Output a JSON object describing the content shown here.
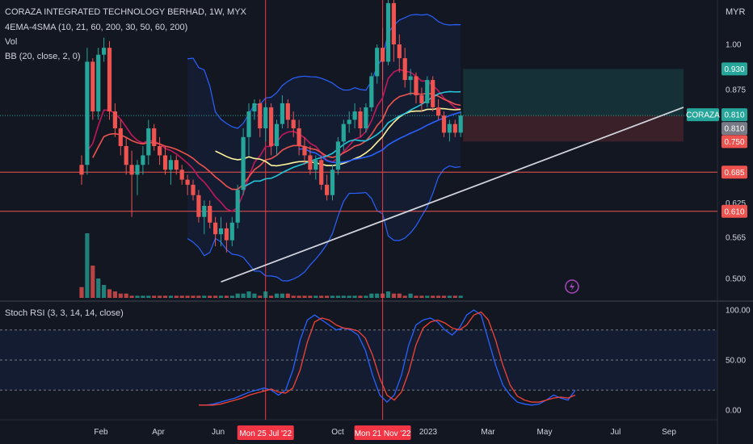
{
  "header": {
    "title": "CORAZA INTEGRATED TECHNOLOGY BERHAD, 1W, MYX",
    "indicator_ema": "4EMA-4SMA (10, 21, 60, 200, 30, 50, 60, 200)",
    "indicator_vol": "Vol",
    "indicator_bb": "BB (20, close, 2, 0)",
    "currency": "MYR",
    "stoch_title": "Stoch RSI (3, 3, 14, 14, close)"
  },
  "colors": {
    "up": "#26a69a",
    "down": "#ef5350",
    "bg": "#131722",
    "grid": "#2a2e39",
    "ema10": "#c2185b",
    "ema21": "#ef5350",
    "sma50": "#26c6da",
    "sma200": "#2962ff",
    "ema60": "#fff59d",
    "bb": "#2962ff",
    "trend": "#d1d4dc",
    "stoch_k": "#2962ff",
    "stoch_d": "#f44336"
  },
  "price_labels": [
    {
      "value": 0.93,
      "text": "0.930",
      "color": "#26a69a"
    },
    {
      "value": 0.81,
      "text": "0.810",
      "color": "#26a69a"
    },
    {
      "value": 0.81,
      "text": "0.810",
      "color": "#787b86"
    },
    {
      "value": 0.75,
      "text": "0.750",
      "color": "#ef5350"
    },
    {
      "value": 0.685,
      "text": "0.685",
      "color": "#ef5350"
    },
    {
      "value": 0.61,
      "text": "0.610",
      "color": "#ef5350"
    }
  ],
  "symbol_tag": "CORAZA",
  "symbol_tag_value": "0.810",
  "time_labels": [
    "Feb",
    "Apr",
    "Jun",
    "Oct",
    "2023",
    "Mar",
    "May",
    "Jul",
    "Sep"
  ],
  "cursor_labels": [
    "Mon 25 Jul '22",
    "Mon 21 Nov '22"
  ],
  "chart_data": [
    {
      "type": "candlestick",
      "title": "CORAZA INTEGRATED TECHNOLOGY BERHAD, 1W, MYX",
      "y_axis_unit": "MYR",
      "y_ticks": [
        0.5,
        0.565,
        0.625,
        0.875,
        1.0
      ],
      "y_tick_labels": [
        "0.500",
        "0.565",
        "0.625",
        "0.875",
        "1.00"
      ],
      "horizontal_levels": [
        0.685,
        0.61
      ],
      "x_ticks": [
        "Feb",
        "Apr",
        "Jun",
        "Oct",
        "2023",
        "Mar",
        "May",
        "Jul",
        "Sep"
      ],
      "candles": [
        [
          0.7,
          0.72,
          0.66,
          0.68
        ],
        [
          0.7,
          0.99,
          0.68,
          0.95
        ],
        [
          0.95,
          0.96,
          0.8,
          0.82
        ],
        [
          0.82,
          0.99,
          0.8,
          0.97
        ],
        [
          0.97,
          1.02,
          0.95,
          0.99
        ],
        [
          0.99,
          1.01,
          0.8,
          0.82
        ],
        [
          0.82,
          0.84,
          0.76,
          0.78
        ],
        [
          0.78,
          0.8,
          0.72,
          0.74
        ],
        [
          0.74,
          0.76,
          0.68,
          0.7
        ],
        [
          0.7,
          0.73,
          0.6,
          0.68
        ],
        [
          0.68,
          0.71,
          0.64,
          0.7
        ],
        [
          0.7,
          0.74,
          0.68,
          0.72
        ],
        [
          0.72,
          0.8,
          0.7,
          0.78
        ],
        [
          0.78,
          0.79,
          0.73,
          0.74
        ],
        [
          0.74,
          0.76,
          0.7,
          0.72
        ],
        [
          0.72,
          0.74,
          0.68,
          0.69
        ],
        [
          0.69,
          0.72,
          0.66,
          0.71
        ],
        [
          0.71,
          0.72,
          0.68,
          0.69
        ],
        [
          0.69,
          0.7,
          0.66,
          0.67
        ],
        [
          0.67,
          0.68,
          0.64,
          0.66
        ],
        [
          0.66,
          0.67,
          0.63,
          0.64
        ],
        [
          0.64,
          0.65,
          0.59,
          0.6
        ],
        [
          0.6,
          0.63,
          0.57,
          0.62
        ],
        [
          0.62,
          0.63,
          0.58,
          0.59
        ],
        [
          0.59,
          0.6,
          0.55,
          0.57
        ],
        [
          0.57,
          0.6,
          0.55,
          0.58
        ],
        [
          0.58,
          0.59,
          0.54,
          0.56
        ],
        [
          0.56,
          0.6,
          0.55,
          0.59
        ],
        [
          0.59,
          0.66,
          0.58,
          0.65
        ],
        [
          0.65,
          0.78,
          0.64,
          0.76
        ],
        [
          0.76,
          0.84,
          0.72,
          0.82
        ],
        [
          0.82,
          0.85,
          0.8,
          0.84
        ],
        [
          0.84,
          0.85,
          0.76,
          0.78
        ],
        [
          0.78,
          0.84,
          0.75,
          0.83
        ],
        [
          0.83,
          0.84,
          0.72,
          0.74
        ],
        [
          0.74,
          0.8,
          0.72,
          0.79
        ],
        [
          0.79,
          0.86,
          0.78,
          0.84
        ],
        [
          0.84,
          0.85,
          0.78,
          0.8
        ],
        [
          0.8,
          0.82,
          0.76,
          0.78
        ],
        [
          0.78,
          0.8,
          0.72,
          0.74
        ],
        [
          0.74,
          0.76,
          0.7,
          0.72
        ],
        [
          0.72,
          0.74,
          0.68,
          0.69
        ],
        [
          0.69,
          0.72,
          0.67,
          0.71
        ],
        [
          0.71,
          0.72,
          0.65,
          0.66
        ],
        [
          0.66,
          0.68,
          0.63,
          0.64
        ],
        [
          0.64,
          0.7,
          0.63,
          0.69
        ],
        [
          0.69,
          0.76,
          0.68,
          0.75
        ],
        [
          0.75,
          0.8,
          0.73,
          0.79
        ],
        [
          0.79,
          0.82,
          0.77,
          0.8
        ],
        [
          0.8,
          0.84,
          0.78,
          0.82
        ],
        [
          0.82,
          0.83,
          0.76,
          0.78
        ],
        [
          0.78,
          0.84,
          0.77,
          0.83
        ],
        [
          0.83,
          0.92,
          0.82,
          0.91
        ],
        [
          0.91,
          1.0,
          0.89,
          0.99
        ],
        [
          0.99,
          1.05,
          0.9,
          0.95
        ],
        [
          0.95,
          1.2,
          0.94,
          1.13
        ],
        [
          1.13,
          1.15,
          0.95,
          1.0
        ],
        [
          1.0,
          1.03,
          0.92,
          0.96
        ],
        [
          0.96,
          0.99,
          0.88,
          0.9
        ],
        [
          0.9,
          0.93,
          0.86,
          0.91
        ],
        [
          0.91,
          0.92,
          0.84,
          0.86
        ],
        [
          0.86,
          0.88,
          0.82,
          0.84
        ],
        [
          0.84,
          0.91,
          0.83,
          0.9
        ],
        [
          0.9,
          0.91,
          0.82,
          0.83
        ],
        [
          0.83,
          0.85,
          0.8,
          0.81
        ],
        [
          0.81,
          0.82,
          0.76,
          0.77
        ],
        [
          0.77,
          0.8,
          0.75,
          0.79
        ],
        [
          0.79,
          0.8,
          0.76,
          0.77
        ],
        [
          0.77,
          0.82,
          0.76,
          0.81
        ]
      ],
      "volume": [
        5,
        30,
        15,
        9,
        6,
        4,
        3,
        2,
        2,
        1,
        1,
        1,
        1,
        1,
        1,
        1,
        1,
        1,
        1,
        1,
        1,
        1,
        1,
        1,
        1,
        1,
        1,
        1,
        2,
        2,
        3,
        2,
        1,
        3,
        1,
        2,
        2,
        2,
        1,
        1,
        1,
        1,
        1,
        1,
        1,
        1,
        1,
        1,
        1,
        1,
        1,
        1,
        2,
        2,
        2,
        3,
        2,
        2,
        1,
        2,
        1,
        1,
        1,
        1,
        1,
        1,
        1,
        1,
        1
      ],
      "volume_last_ma": 2,
      "bollinger_upper_end": 1.18,
      "bollinger_lower_end": 0.72,
      "trendline": {
        "start": 0.495,
        "end": 0.83
      },
      "long_position": {
        "entry": 0.81,
        "target": 0.93,
        "stop": 0.75
      }
    },
    {
      "type": "line",
      "title": "Stoch RSI (3, 3, 14, 14, close)",
      "y_ticks": [
        0,
        50,
        100
      ],
      "y_tick_labels": [
        "0.00",
        "50.00",
        "100.00"
      ],
      "bands": [
        20,
        50,
        80
      ],
      "series": [
        {
          "name": "K",
          "values": [
            5,
            5,
            6,
            8,
            10,
            12,
            15,
            18,
            20,
            22,
            20,
            15,
            20,
            40,
            70,
            90,
            95,
            90,
            85,
            80,
            82,
            80,
            75,
            60,
            35,
            15,
            8,
            15,
            35,
            65,
            85,
            90,
            92,
            88,
            80,
            75,
            82,
            95,
            100,
            95,
            70,
            45,
            25,
            15,
            8,
            6,
            5,
            6,
            10,
            15,
            12,
            10,
            20
          ]
        },
        {
          "name": "D",
          "values": [
            5,
            5,
            5,
            6,
            8,
            10,
            12,
            15,
            17,
            19,
            21,
            18,
            17,
            22,
            40,
            68,
            88,
            92,
            90,
            85,
            82,
            81,
            79,
            72,
            55,
            32,
            15,
            10,
            18,
            38,
            65,
            82,
            88,
            90,
            87,
            82,
            80,
            85,
            95,
            98,
            90,
            70,
            45,
            25,
            14,
            10,
            8,
            8,
            10,
            12,
            13,
            12,
            15
          ]
        }
      ]
    }
  ]
}
